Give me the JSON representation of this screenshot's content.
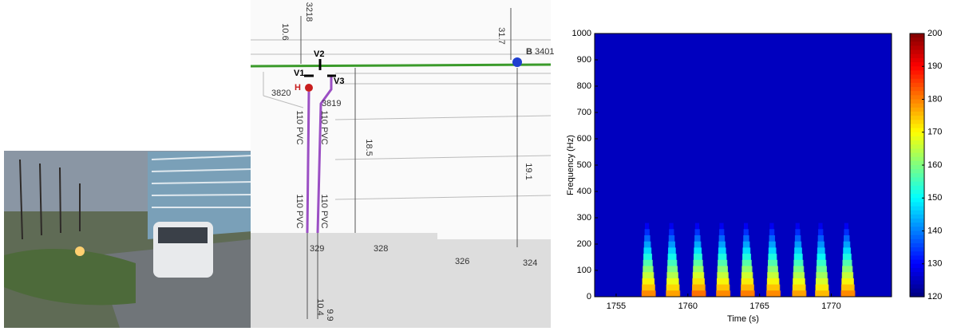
{
  "diagram": {
    "labels": {
      "dim_top_left": "10.6",
      "ref_top": "3218",
      "dim_top_right": "31.7",
      "point_b": "B",
      "ref_b": "3401",
      "valve_2": "V2",
      "valve_1": "V1",
      "valve_3": "V3",
      "point_h": "H",
      "ref_left": "3820",
      "ref_mid": "3819",
      "dim_mid": "18.5",
      "dim_right": "19.1",
      "dim_bottom_1": "10.4",
      "dim_bottom_2": "9.9",
      "pipe_1": "110 PVC",
      "pipe_2": "110 PVC",
      "pipe_3": "110 PVC",
      "pipe_4": "110 PVC",
      "plot_1": "329",
      "plot_2": "328",
      "plot_3": "326",
      "plot_4": "324"
    }
  },
  "chart_data": {
    "type": "spectrogram",
    "xlabel": "Time  (s)",
    "ylabel": "Frequency  (Hz)",
    "xlim": [
      1753.5,
      1774.2
    ],
    "ylim": [
      0,
      1000
    ],
    "xticks": [
      1755,
      1760,
      1765,
      1770
    ],
    "yticks": [
      0,
      100,
      200,
      300,
      400,
      500,
      600,
      700,
      800,
      900,
      1000
    ],
    "clim": [
      120,
      200
    ],
    "cticks": [
      120,
      130,
      140,
      150,
      160,
      170,
      180,
      190,
      200
    ],
    "colormap": "jet",
    "background": 125,
    "x": [
      1757.1,
      1758.8,
      1760.6,
      1762.3,
      1764.0,
      1765.8,
      1767.6,
      1769.2,
      1771.0
    ],
    "values": [
      180,
      178,
      182,
      180,
      181,
      180,
      178,
      176,
      180
    ]
  }
}
